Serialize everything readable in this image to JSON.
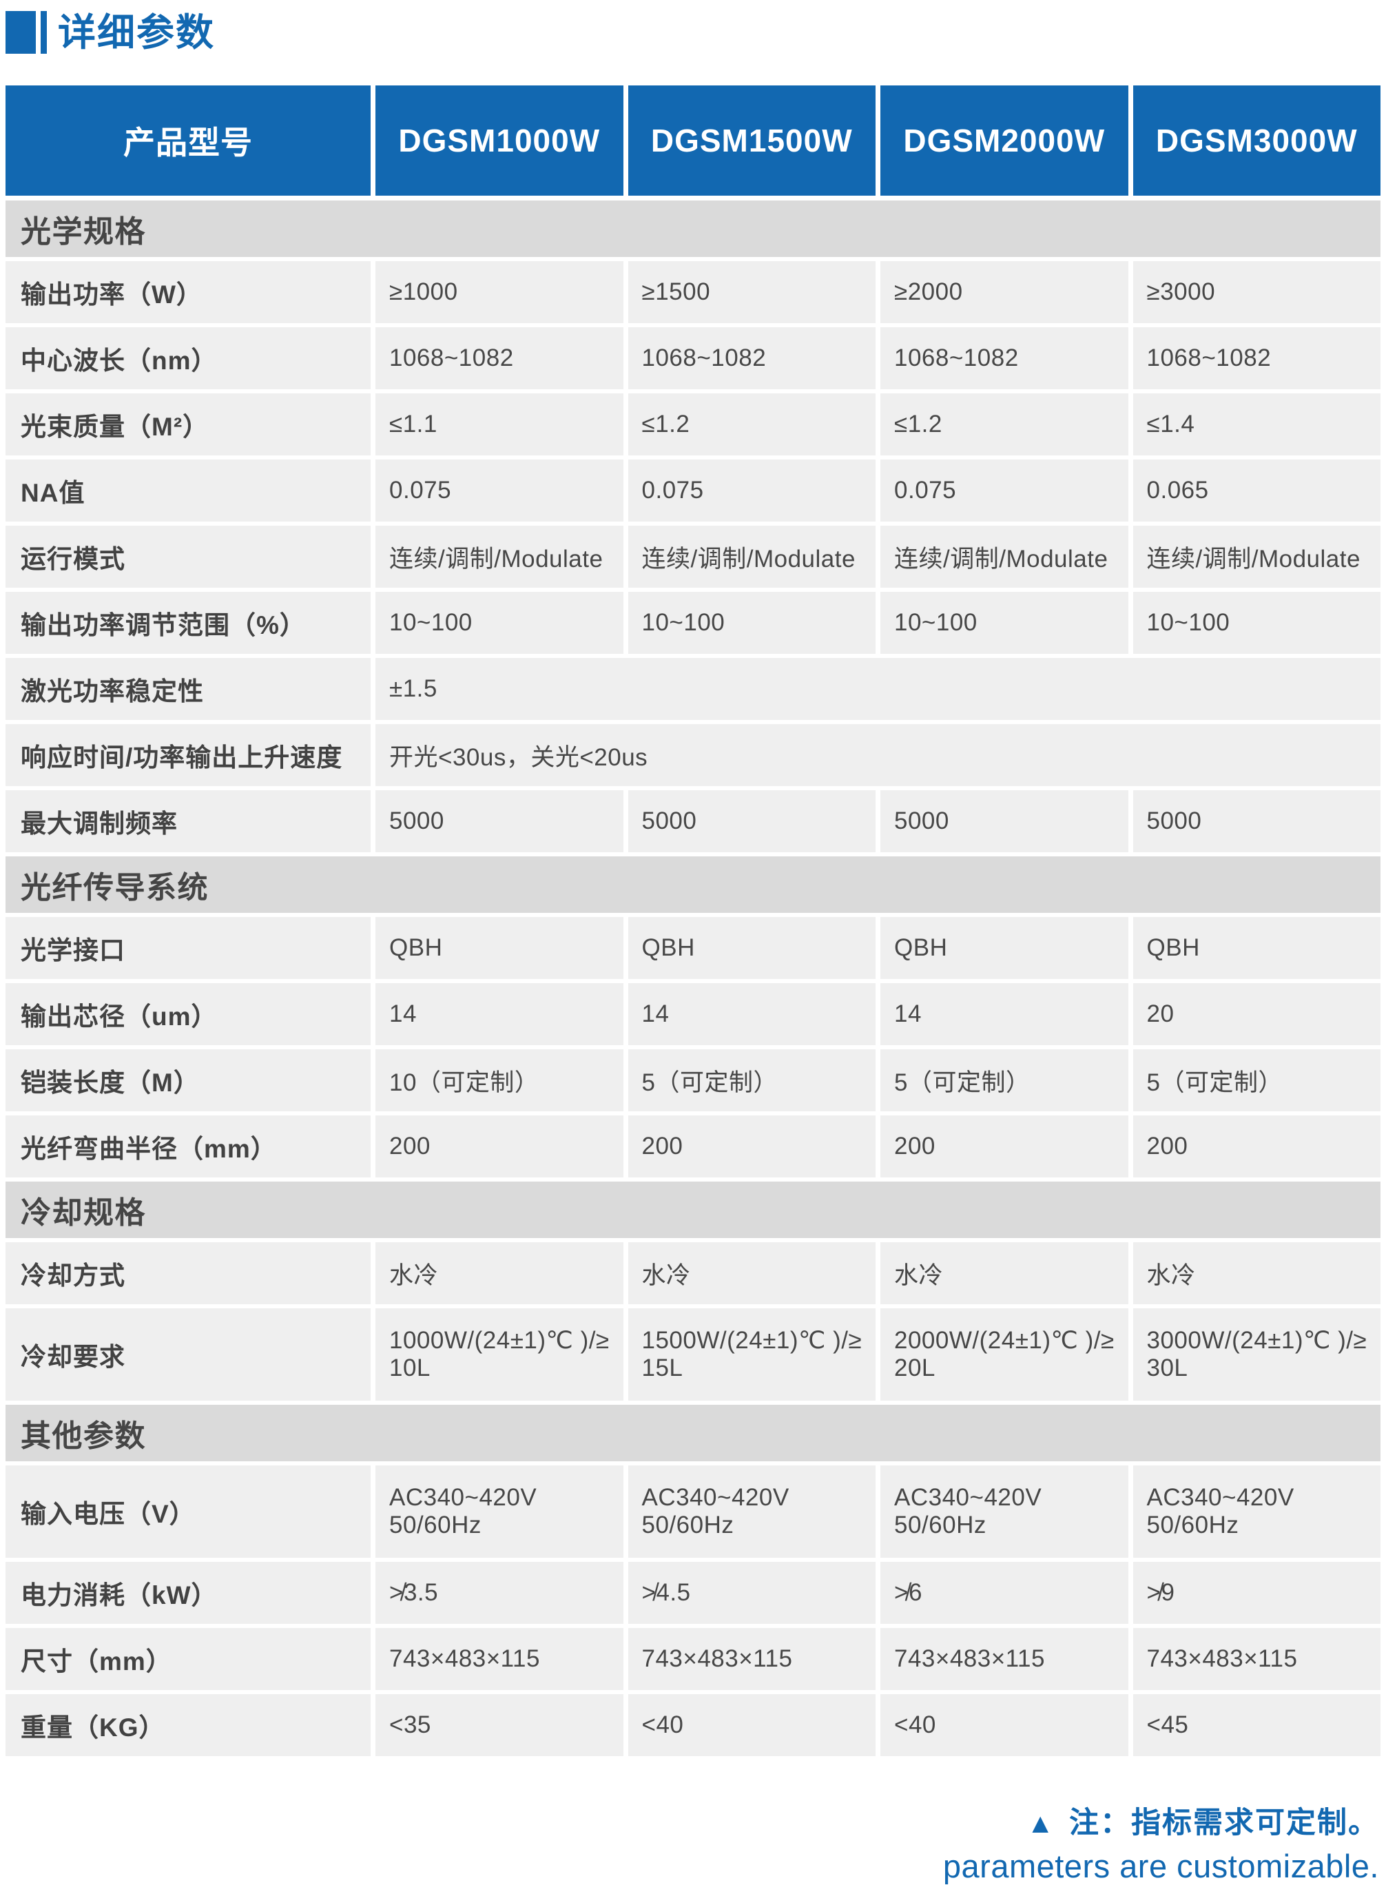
{
  "accent_color": "#1268b1",
  "section_bar_color": "#dadada",
  "row_bg_color": "#efefef",
  "page_title": "详细参数",
  "table": {
    "header": {
      "label": "产品型号",
      "models": [
        "DGSM1000W",
        "DGSM1500W",
        "DGSM2000W",
        "DGSM3000W"
      ]
    },
    "sections": [
      {
        "title": "光学规格",
        "rows": [
          {
            "label": "输出功率（W）",
            "values": [
              "≥1000",
              "≥1500",
              "≥2000",
              "≥3000"
            ]
          },
          {
            "label": "中心波长（nm）",
            "values": [
              "1068~1082",
              "1068~1082",
              "1068~1082",
              "1068~1082"
            ]
          },
          {
            "label": "光束质量（M²）",
            "values": [
              "≤1.1",
              "≤1.2",
              "≤1.2",
              "≤1.4"
            ]
          },
          {
            "label": "NA值",
            "values": [
              "0.075",
              "0.075",
              "0.075",
              "0.065"
            ]
          },
          {
            "label": "运行模式",
            "values": [
              "连续/调制/Modulate",
              "连续/调制/Modulate",
              "连续/调制/Modulate",
              "连续/调制/Modulate"
            ]
          },
          {
            "label": "输出功率调节范围（%）",
            "values": [
              "10~100",
              "10~100",
              "10~100",
              "10~100"
            ]
          },
          {
            "label": "激光功率稳定性",
            "span": "±1.5"
          },
          {
            "label": "响应时间/功率输出上升速度",
            "span": "开光<30us，关光<20us"
          },
          {
            "label": "最大调制频率",
            "values": [
              "5000",
              "5000",
              "5000",
              "5000"
            ]
          }
        ]
      },
      {
        "title": "光纤传导系统",
        "rows": [
          {
            "label": "光学接口",
            "values": [
              "QBH",
              "QBH",
              "QBH",
              "QBH"
            ]
          },
          {
            "label": "输出芯径（um）",
            "values": [
              "14",
              "14",
              "14",
              "20"
            ]
          },
          {
            "label": "铠装长度（M）",
            "values": [
              "10（可定制）",
              "5（可定制）",
              "5（可定制）",
              "5（可定制）"
            ]
          },
          {
            "label": "光纤弯曲半径（mm）",
            "values": [
              "200",
              "200",
              "200",
              "200"
            ]
          }
        ]
      },
      {
        "title": "冷却规格",
        "rows": [
          {
            "label": "冷却方式",
            "values": [
              "水冷",
              "水冷",
              "水冷",
              "水冷"
            ]
          },
          {
            "label": "冷却要求",
            "values": [
              "1000W/(24±1)℃ )/≥\n10L",
              "1500W/(24±1)℃ )/≥\n15L",
              "2000W/(24±1)℃ )/≥\n20L",
              "3000W/(24±1)℃ )/≥\n30L"
            ]
          }
        ]
      },
      {
        "title": "其他参数",
        "rows": [
          {
            "label": "输入电压（V）",
            "values": [
              "AC340~420V\n50/60Hz",
              "AC340~420V\n50/60Hz",
              "AC340~420V\n50/60Hz",
              "AC340~420V\n50/60Hz"
            ]
          },
          {
            "label": "电力消耗（kW）",
            "values": [
              "≯3.5",
              "≯4.5",
              "≯6",
              "≯9"
            ]
          },
          {
            "label": "尺寸（mm）",
            "values": [
              "743×483×115",
              "743×483×115",
              "743×483×115",
              "743×483×115"
            ]
          },
          {
            "label": "重量（KG）",
            "values": [
              "<35",
              "<40",
              "<40",
              "<45"
            ]
          }
        ]
      }
    ]
  },
  "footnote": {
    "triangle": "▲",
    "zh": "注：指标需求可定制。",
    "en": "parameters are customizable."
  }
}
